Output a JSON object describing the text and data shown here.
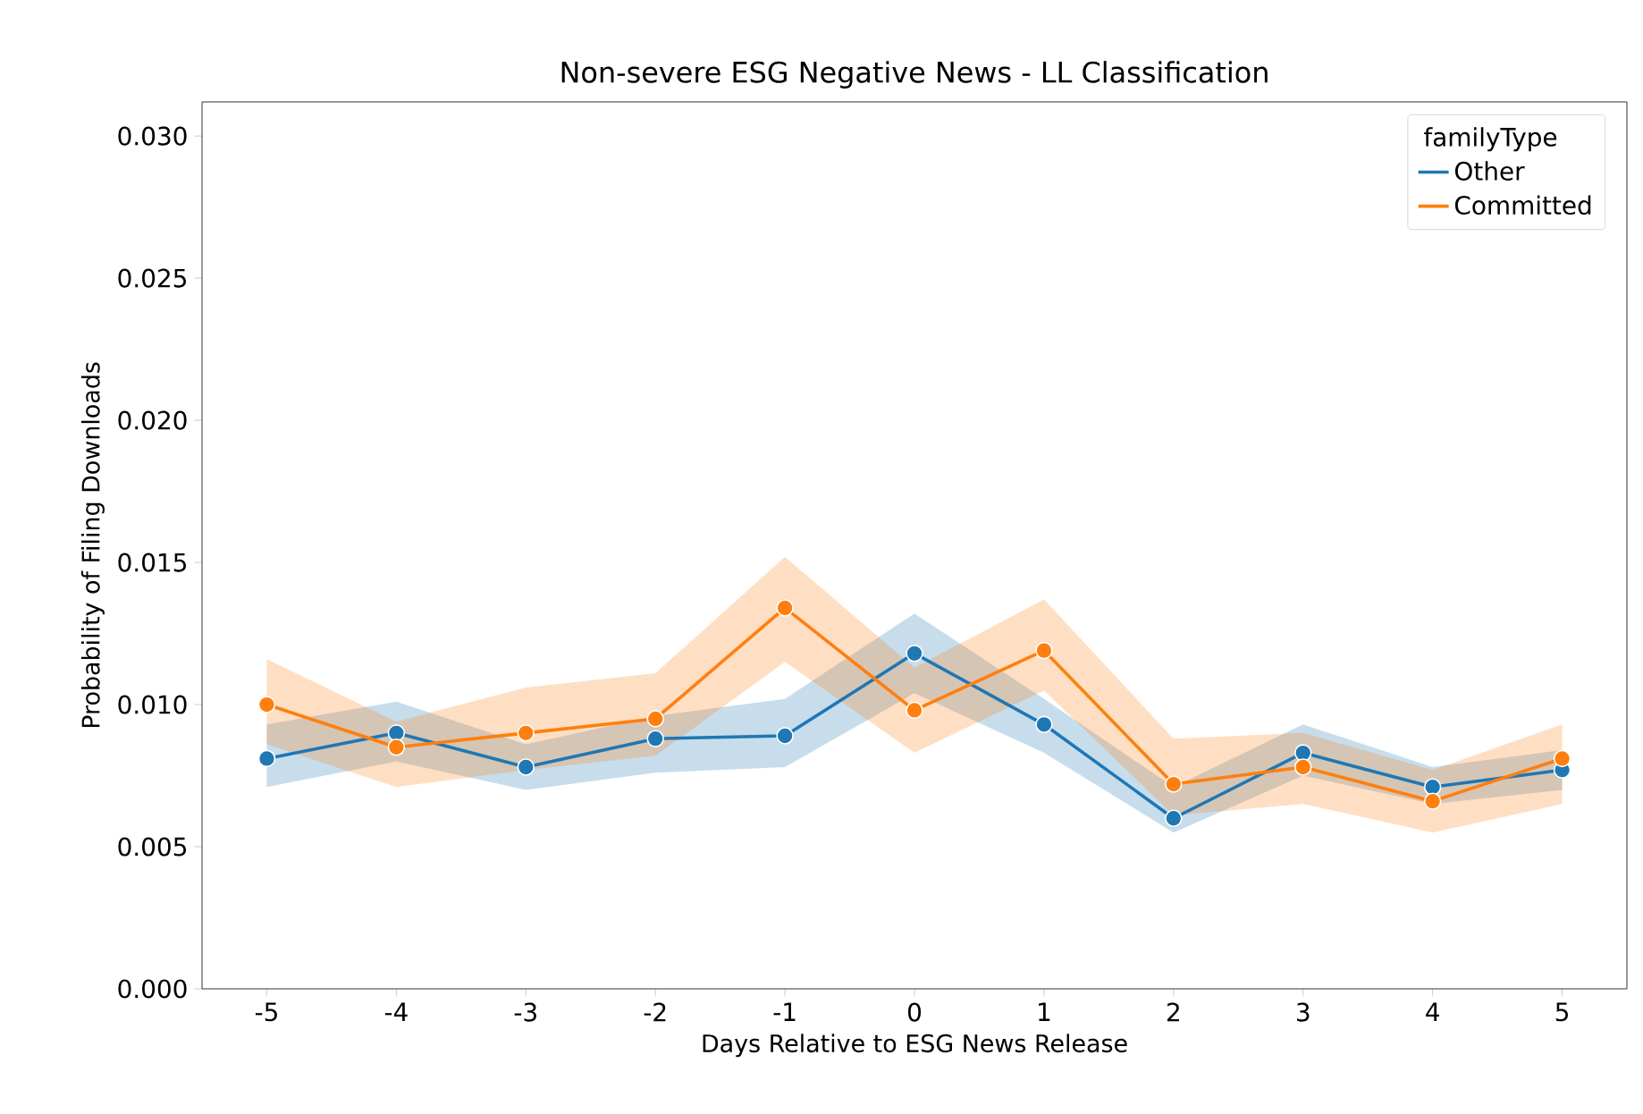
{
  "chart_data": {
    "type": "line",
    "title": "Non-severe ESG Negative News - LL Classification",
    "xlabel": "Days Relative to ESG News Release",
    "ylabel": "Probability of Filing Downloads",
    "legend_title": "familyType",
    "x": [
      -5,
      -4,
      -3,
      -2,
      -1,
      0,
      1,
      2,
      3,
      4,
      5
    ],
    "series": [
      {
        "name": "Other",
        "color": "#1f77b4",
        "values": [
          0.0081,
          0.009,
          0.0078,
          0.0088,
          0.0089,
          0.0118,
          0.0093,
          0.006,
          0.0083,
          0.0071,
          0.0077
        ],
        "lower": [
          0.0071,
          0.008,
          0.007,
          0.0076,
          0.0078,
          0.0104,
          0.0083,
          0.0055,
          0.0075,
          0.0065,
          0.007
        ],
        "upper": [
          0.0093,
          0.0101,
          0.0086,
          0.0096,
          0.0102,
          0.0132,
          0.0102,
          0.0071,
          0.0093,
          0.0078,
          0.0084
        ]
      },
      {
        "name": "Committed",
        "color": "#ff7f0e",
        "values": [
          0.01,
          0.0085,
          0.009,
          0.0095,
          0.0134,
          0.0098,
          0.0119,
          0.0072,
          0.0078,
          0.0066,
          0.0081
        ],
        "lower": [
          0.0086,
          0.0071,
          0.0077,
          0.0082,
          0.0115,
          0.0083,
          0.0105,
          0.0061,
          0.0065,
          0.0055,
          0.0065
        ],
        "upper": [
          0.0116,
          0.0094,
          0.0106,
          0.0111,
          0.0152,
          0.0113,
          0.0137,
          0.0088,
          0.009,
          0.0077,
          0.0093
        ]
      }
    ],
    "xlim": [
      -5.5,
      5.5
    ],
    "ylim": [
      0,
      0.0312
    ],
    "xticks": [
      -5,
      -4,
      -3,
      -2,
      -1,
      0,
      1,
      2,
      3,
      4,
      5
    ],
    "yticks": [
      {
        "value": 0,
        "label": "0.000"
      },
      {
        "value": 0.005,
        "label": "0.005"
      },
      {
        "value": 0.01,
        "label": "0.010"
      },
      {
        "value": 0.015,
        "label": "0.015"
      },
      {
        "value": 0.02,
        "label": "0.020"
      },
      {
        "value": 0.025,
        "label": "0.025"
      },
      {
        "value": 0.03,
        "label": "0.030"
      }
    ],
    "legend": "top right",
    "marker": "circle",
    "line_style": "solid",
    "grid": false
  }
}
